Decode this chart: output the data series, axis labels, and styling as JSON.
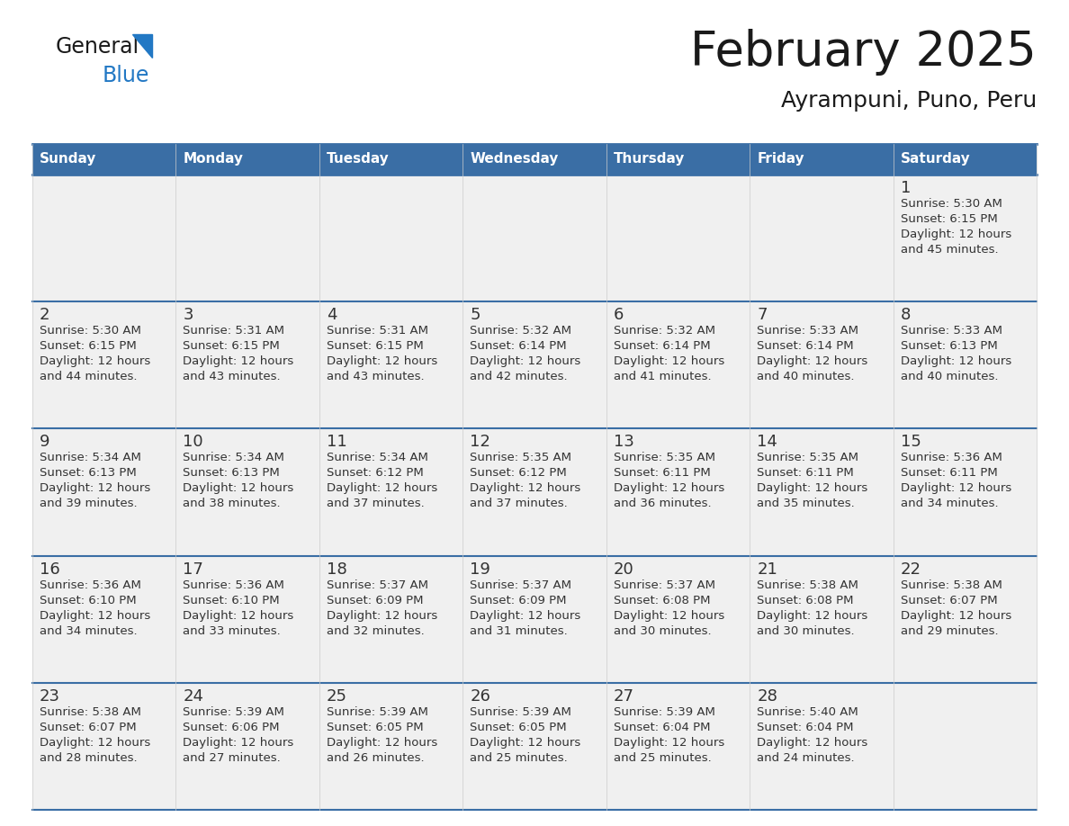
{
  "title": "February 2025",
  "subtitle": "Ayrampuni, Puno, Peru",
  "header_bg": "#3a6ea5",
  "header_text_color": "#ffffff",
  "header_days": [
    "Sunday",
    "Monday",
    "Tuesday",
    "Wednesday",
    "Thursday",
    "Friday",
    "Saturday"
  ],
  "cell_bg": "#f0f0f0",
  "day_text_color": "#333333",
  "info_text_color": "#333333",
  "border_color": "#3a6ea5",
  "logo_general_color": "#1a1a1a",
  "logo_blue_color": "#2278c4",
  "logo_triangle_color": "#2278c4",
  "calendar_data": [
    [
      null,
      null,
      null,
      null,
      null,
      null,
      1
    ],
    [
      2,
      3,
      4,
      5,
      6,
      7,
      8
    ],
    [
      9,
      10,
      11,
      12,
      13,
      14,
      15
    ],
    [
      16,
      17,
      18,
      19,
      20,
      21,
      22
    ],
    [
      23,
      24,
      25,
      26,
      27,
      28,
      null
    ]
  ],
  "day_info": {
    "1": {
      "sunrise": "5:30 AM",
      "sunset": "6:15 PM",
      "daylight": "12 hours and 45 minutes."
    },
    "2": {
      "sunrise": "5:30 AM",
      "sunset": "6:15 PM",
      "daylight": "12 hours and 44 minutes."
    },
    "3": {
      "sunrise": "5:31 AM",
      "sunset": "6:15 PM",
      "daylight": "12 hours and 43 minutes."
    },
    "4": {
      "sunrise": "5:31 AM",
      "sunset": "6:15 PM",
      "daylight": "12 hours and 43 minutes."
    },
    "5": {
      "sunrise": "5:32 AM",
      "sunset": "6:14 PM",
      "daylight": "12 hours and 42 minutes."
    },
    "6": {
      "sunrise": "5:32 AM",
      "sunset": "6:14 PM",
      "daylight": "12 hours and 41 minutes."
    },
    "7": {
      "sunrise": "5:33 AM",
      "sunset": "6:14 PM",
      "daylight": "12 hours and 40 minutes."
    },
    "8": {
      "sunrise": "5:33 AM",
      "sunset": "6:13 PM",
      "daylight": "12 hours and 40 minutes."
    },
    "9": {
      "sunrise": "5:34 AM",
      "sunset": "6:13 PM",
      "daylight": "12 hours and 39 minutes."
    },
    "10": {
      "sunrise": "5:34 AM",
      "sunset": "6:13 PM",
      "daylight": "12 hours and 38 minutes."
    },
    "11": {
      "sunrise": "5:34 AM",
      "sunset": "6:12 PM",
      "daylight": "12 hours and 37 minutes."
    },
    "12": {
      "sunrise": "5:35 AM",
      "sunset": "6:12 PM",
      "daylight": "12 hours and 37 minutes."
    },
    "13": {
      "sunrise": "5:35 AM",
      "sunset": "6:11 PM",
      "daylight": "12 hours and 36 minutes."
    },
    "14": {
      "sunrise": "5:35 AM",
      "sunset": "6:11 PM",
      "daylight": "12 hours and 35 minutes."
    },
    "15": {
      "sunrise": "5:36 AM",
      "sunset": "6:11 PM",
      "daylight": "12 hours and 34 minutes."
    },
    "16": {
      "sunrise": "5:36 AM",
      "sunset": "6:10 PM",
      "daylight": "12 hours and 34 minutes."
    },
    "17": {
      "sunrise": "5:36 AM",
      "sunset": "6:10 PM",
      "daylight": "12 hours and 33 minutes."
    },
    "18": {
      "sunrise": "5:37 AM",
      "sunset": "6:09 PM",
      "daylight": "12 hours and 32 minutes."
    },
    "19": {
      "sunrise": "5:37 AM",
      "sunset": "6:09 PM",
      "daylight": "12 hours and 31 minutes."
    },
    "20": {
      "sunrise": "5:37 AM",
      "sunset": "6:08 PM",
      "daylight": "12 hours and 30 minutes."
    },
    "21": {
      "sunrise": "5:38 AM",
      "sunset": "6:08 PM",
      "daylight": "12 hours and 30 minutes."
    },
    "22": {
      "sunrise": "5:38 AM",
      "sunset": "6:07 PM",
      "daylight": "12 hours and 29 minutes."
    },
    "23": {
      "sunrise": "5:38 AM",
      "sunset": "6:07 PM",
      "daylight": "12 hours and 28 minutes."
    },
    "24": {
      "sunrise": "5:39 AM",
      "sunset": "6:06 PM",
      "daylight": "12 hours and 27 minutes."
    },
    "25": {
      "sunrise": "5:39 AM",
      "sunset": "6:05 PM",
      "daylight": "12 hours and 26 minutes."
    },
    "26": {
      "sunrise": "5:39 AM",
      "sunset": "6:05 PM",
      "daylight": "12 hours and 25 minutes."
    },
    "27": {
      "sunrise": "5:39 AM",
      "sunset": "6:04 PM",
      "daylight": "12 hours and 25 minutes."
    },
    "28": {
      "sunrise": "5:40 AM",
      "sunset": "6:04 PM",
      "daylight": "12 hours and 24 minutes."
    }
  }
}
